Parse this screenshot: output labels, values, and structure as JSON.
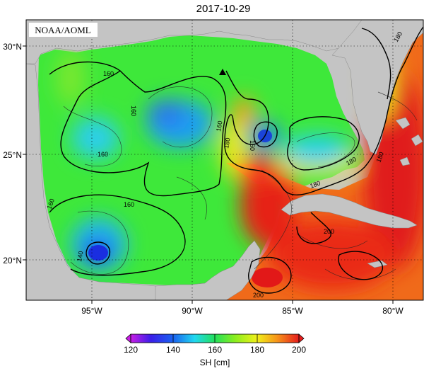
{
  "map": {
    "title": "2017-10-29",
    "badge": "NOAA/AOML",
    "lat_labels": [
      "30°N",
      "25°N",
      "20°N"
    ],
    "lon_labels": [
      "95°W",
      "90°W",
      "85°W",
      "80°W"
    ],
    "contour_labels": [
      "160",
      "160",
      "160",
      "160",
      "160",
      "160",
      "160",
      "180",
      "180",
      "180",
      "180",
      "180",
      "140",
      "200",
      "200"
    ],
    "colors": {
      "land": "#c4c4c4",
      "low_blue": "#2a34e8",
      "cyan": "#24e8e8",
      "green": "#2ee82e",
      "yellow": "#f2f21a",
      "orange": "#f79a1a",
      "red": "#e81c1c",
      "magenta": "#d21ee6"
    },
    "marker": "triangle"
  },
  "colorbar": {
    "label": "SH [cm]",
    "ticks": [
      "120",
      "140",
      "160",
      "180",
      "200"
    ]
  }
}
